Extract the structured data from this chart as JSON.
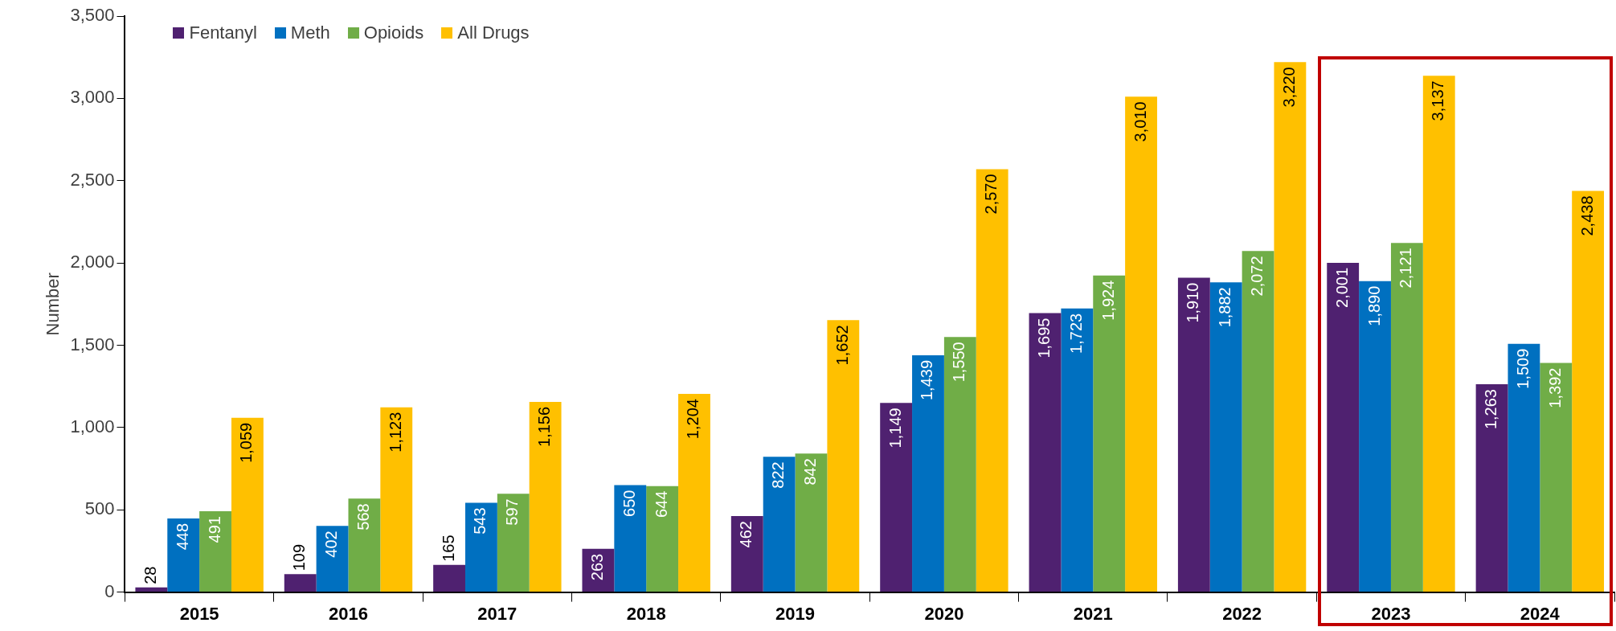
{
  "chart_data": {
    "type": "bar",
    "ylabel": "Number",
    "categories": [
      "2015",
      "2016",
      "2017",
      "2018",
      "2019",
      "2020",
      "2021",
      "2022",
      "2023",
      "2024"
    ],
    "series": [
      {
        "name": "Fentanyl",
        "color": "#4f2170",
        "values": [
          28,
          109,
          165,
          263,
          462,
          1149,
          1695,
          1910,
          2001,
          1263
        ],
        "value_labels": [
          "28",
          "109",
          "165",
          "263",
          "462",
          "1,149",
          "1,695",
          "1,910",
          "2,001",
          "1,263"
        ]
      },
      {
        "name": "Meth",
        "color": "#0070c0",
        "values": [
          448,
          402,
          543,
          650,
          822,
          1439,
          1723,
          1882,
          1890,
          1509
        ],
        "value_labels": [
          "448",
          "402",
          "543",
          "650",
          "822",
          "1,439",
          "1,723",
          "1,882",
          "1,890",
          "1,509"
        ]
      },
      {
        "name": "Opioids",
        "color": "#70ad47",
        "values": [
          491,
          568,
          597,
          644,
          842,
          1550,
          1924,
          2072,
          2121,
          1392
        ],
        "value_labels": [
          "491",
          "568",
          "597",
          "644",
          "842",
          "1,550",
          "1,924",
          "2,072",
          "2,121",
          "1,392"
        ]
      },
      {
        "name": "All Drugs",
        "color": "#ffc000",
        "values": [
          1059,
          1123,
          1156,
          1204,
          1652,
          2570,
          3010,
          3220,
          3137,
          2438
        ],
        "value_labels": [
          "1,059",
          "1,123",
          "1,156",
          "1,204",
          "1,652",
          "2,570",
          "3,010",
          "3,220",
          "3,137",
          "2,438"
        ]
      }
    ],
    "ylim": [
      0,
      3500
    ],
    "yticks": [
      0,
      500,
      {
        "value": 1000,
        "label": "1,000"
      },
      {
        "value": 1500,
        "label": "1,500"
      },
      {
        "value": 2000,
        "label": "2,000"
      },
      {
        "value": 2500,
        "label": "2,500"
      },
      {
        "value": 3000,
        "label": "3,000"
      },
      {
        "value": 3500,
        "label": "3,500"
      }
    ],
    "grid": false,
    "legend": "top left"
  }
}
